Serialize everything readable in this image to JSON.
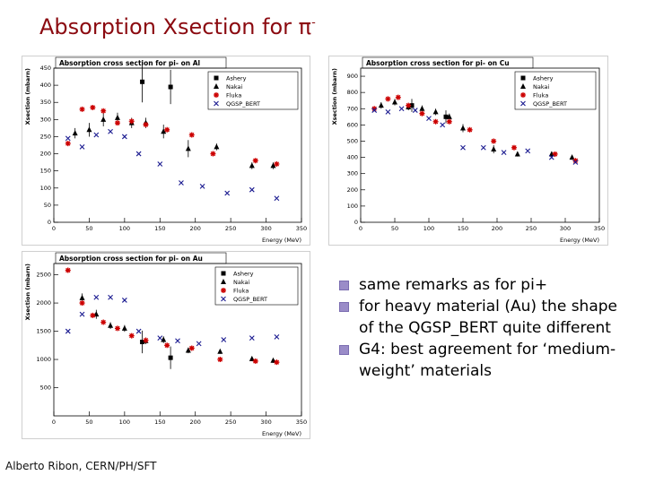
{
  "slide": {
    "title": "Absorption Xsection for π",
    "title_superscript": "-",
    "footer": "Alberto Ribon, CERN/PH/SFT",
    "bullets": [
      "same remarks as for pi+",
      "for heavy material (Au) the shape of the QGSP_BERT quite different",
      "G4: best agreement for ‘medium-weight’ materials"
    ]
  },
  "legend_labels": [
    "Ashery",
    "Nakai",
    "Fluka",
    "QGSP_BERT"
  ],
  "colors": {
    "title": "#8b0a10",
    "ashery": "#000000",
    "nakai": "#000000",
    "fluka": "#cc0000",
    "qgsp": "#1a1a90",
    "bullet": "#9a8cc8"
  },
  "chart_data": [
    {
      "type": "scatter",
      "title": "Absorption cross section for pi- on Al",
      "xlabel": "Energy (MeV)",
      "ylabel": "Xsection (mbarn)",
      "xlim": [
        0,
        350
      ],
      "ylim": [
        0,
        450
      ],
      "xticks": [
        0,
        50,
        100,
        150,
        200,
        250,
        300,
        350
      ],
      "yticks": [
        0,
        50,
        100,
        150,
        200,
        250,
        300,
        350,
        400,
        450
      ],
      "legend": "top-right",
      "series": [
        {
          "name": "Ashery",
          "marker": "square",
          "points": [
            [
              125,
              410
            ],
            [
              165,
              395
            ]
          ],
          "errors": [
            60,
            50
          ]
        },
        {
          "name": "Nakai",
          "marker": "triangle",
          "points": [
            [
              30,
              260
            ],
            [
              50,
              270
            ],
            [
              70,
              300
            ],
            [
              90,
              305
            ],
            [
              110,
              290
            ],
            [
              130,
              290
            ],
            [
              155,
              265
            ],
            [
              190,
              215
            ],
            [
              230,
              220
            ],
            [
              280,
              165
            ],
            [
              310,
              165
            ]
          ],
          "errors": [
            15,
            20,
            20,
            15,
            15,
            15,
            20,
            25,
            10,
            10,
            10
          ]
        },
        {
          "name": "Fluka",
          "marker": "star",
          "points": [
            [
              20,
              230
            ],
            [
              40,
              330
            ],
            [
              55,
              335
            ],
            [
              70,
              325
            ],
            [
              90,
              290
            ],
            [
              110,
              295
            ],
            [
              130,
              285
            ],
            [
              160,
              270
            ],
            [
              195,
              255
            ],
            [
              225,
              200
            ],
            [
              285,
              180
            ],
            [
              315,
              170
            ]
          ],
          "errors": []
        },
        {
          "name": "QGSP_BERT",
          "marker": "cross",
          "points": [
            [
              20,
              245
            ],
            [
              40,
              220
            ],
            [
              60,
              255
            ],
            [
              80,
              265
            ],
            [
              100,
              250
            ],
            [
              120,
              200
            ],
            [
              150,
              170
            ],
            [
              180,
              115
            ],
            [
              210,
              105
            ],
            [
              245,
              85
            ],
            [
              280,
              95
            ],
            [
              315,
              70
            ]
          ],
          "errors": []
        }
      ]
    },
    {
      "type": "scatter",
      "title": "Absorption cross section for pi- on Cu",
      "xlabel": "Energy (MeV)",
      "ylabel": "Xsection (mbarn)",
      "xlim": [
        0,
        350
      ],
      "ylim": [
        0,
        950
      ],
      "xticks": [
        0,
        50,
        100,
        150,
        200,
        250,
        300,
        350
      ],
      "yticks": [
        0,
        100,
        200,
        300,
        400,
        500,
        600,
        700,
        800,
        900
      ],
      "legend": "top-right",
      "series": [
        {
          "name": "Ashery",
          "marker": "square",
          "points": [
            [
              75,
              720
            ],
            [
              125,
              650
            ]
          ],
          "errors": [
            40,
            40
          ]
        },
        {
          "name": "Nakai",
          "marker": "triangle",
          "points": [
            [
              30,
              720
            ],
            [
              50,
              740
            ],
            [
              70,
              710
            ],
            [
              90,
              700
            ],
            [
              110,
              680
            ],
            [
              130,
              650
            ],
            [
              150,
              580
            ],
            [
              195,
              450
            ],
            [
              230,
              420
            ],
            [
              280,
              420
            ],
            [
              310,
              400
            ]
          ],
          "errors": [
            20,
            20,
            20,
            20,
            20,
            20,
            25,
            25,
            15,
            15,
            15
          ]
        },
        {
          "name": "Fluka",
          "marker": "star",
          "points": [
            [
              20,
              700
            ],
            [
              40,
              760
            ],
            [
              55,
              770
            ],
            [
              70,
              720
            ],
            [
              90,
              670
            ],
            [
              110,
              620
            ],
            [
              130,
              620
            ],
            [
              160,
              570
            ],
            [
              195,
              500
            ],
            [
              225,
              460
            ],
            [
              285,
              420
            ],
            [
              315,
              380
            ]
          ],
          "errors": []
        },
        {
          "name": "QGSP_BERT",
          "marker": "cross",
          "points": [
            [
              20,
              690
            ],
            [
              40,
              680
            ],
            [
              60,
              700
            ],
            [
              80,
              690
            ],
            [
              100,
              640
            ],
            [
              120,
              600
            ],
            [
              150,
              460
            ],
            [
              180,
              460
            ],
            [
              210,
              430
            ],
            [
              245,
              440
            ],
            [
              280,
              400
            ],
            [
              315,
              370
            ]
          ],
          "errors": []
        }
      ]
    },
    {
      "type": "scatter",
      "title": "Absorption cross section for pi- on Au",
      "xlabel": "Energy (MeV)",
      "ylabel": "Xsection (mbarn)",
      "xlim": [
        0,
        350
      ],
      "ylim": [
        0,
        2700
      ],
      "xticks": [
        0,
        50,
        100,
        150,
        200,
        250,
        300,
        350
      ],
      "yticks": [
        500,
        1000,
        1500,
        2000,
        2500
      ],
      "legend": "top-right",
      "series": [
        {
          "name": "Ashery",
          "marker": "square",
          "points": [
            [
              125,
              1310
            ],
            [
              165,
              1030
            ]
          ],
          "errors": [
            200,
            200
          ]
        },
        {
          "name": "Nakai",
          "marker": "triangle",
          "points": [
            [
              40,
              2090
            ],
            [
              60,
              1800
            ],
            [
              80,
              1600
            ],
            [
              100,
              1550
            ],
            [
              130,
              1330
            ],
            [
              155,
              1350
            ],
            [
              190,
              1160
            ],
            [
              235,
              1140
            ],
            [
              280,
              1010
            ],
            [
              310,
              980
            ]
          ],
          "errors": [
            80,
            80,
            60,
            60,
            60,
            60,
            50,
            40,
            40,
            40
          ]
        },
        {
          "name": "Fluka",
          "marker": "star",
          "points": [
            [
              20,
              2580
            ],
            [
              40,
              2000
            ],
            [
              55,
              1780
            ],
            [
              70,
              1660
            ],
            [
              90,
              1550
            ],
            [
              110,
              1420
            ],
            [
              130,
              1340
            ],
            [
              160,
              1250
            ],
            [
              195,
              1200
            ],
            [
              235,
              1000
            ],
            [
              285,
              970
            ],
            [
              315,
              950
            ]
          ],
          "errors": []
        },
        {
          "name": "QGSP_BERT",
          "marker": "cross",
          "points": [
            [
              20,
              1500
            ],
            [
              40,
              1800
            ],
            [
              60,
              2100
            ],
            [
              80,
              2100
            ],
            [
              100,
              2050
            ],
            [
              120,
              1500
            ],
            [
              150,
              1380
            ],
            [
              175,
              1330
            ],
            [
              205,
              1280
            ],
            [
              240,
              1350
            ],
            [
              280,
              1380
            ],
            [
              315,
              1400
            ]
          ],
          "errors": []
        }
      ]
    }
  ]
}
